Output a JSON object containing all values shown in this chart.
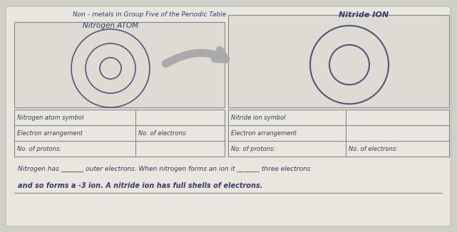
{
  "title": "Non - metals in Group Five of the Periodic Table",
  "left_label": "Nitrogen ATOM",
  "right_label": "Nitride ION",
  "bg_color": "#d0cfc8",
  "paper_color": "#e8e6df",
  "text_color": "#3a3a6a",
  "table_left": {
    "rows": [
      "Nitrogen atom symbol",
      "Electron arrangement",
      "No. of protons:"
    ],
    "right_cells": [
      "",
      "No. of electrons:",
      ""
    ]
  },
  "table_right": {
    "rows": [
      "Nitride ion symbol",
      "Electron arrangement",
      "No. of protons:"
    ],
    "right_cells": [
      "",
      "",
      "No. of electrons:"
    ]
  },
  "bottom_text1": "Nitrogen has _______ outer electrons. When nitrogen forms an ion it _______ three electrons",
  "bottom_text2": "and so forms a -3 ion. A nitride ion has full shells of electrons."
}
